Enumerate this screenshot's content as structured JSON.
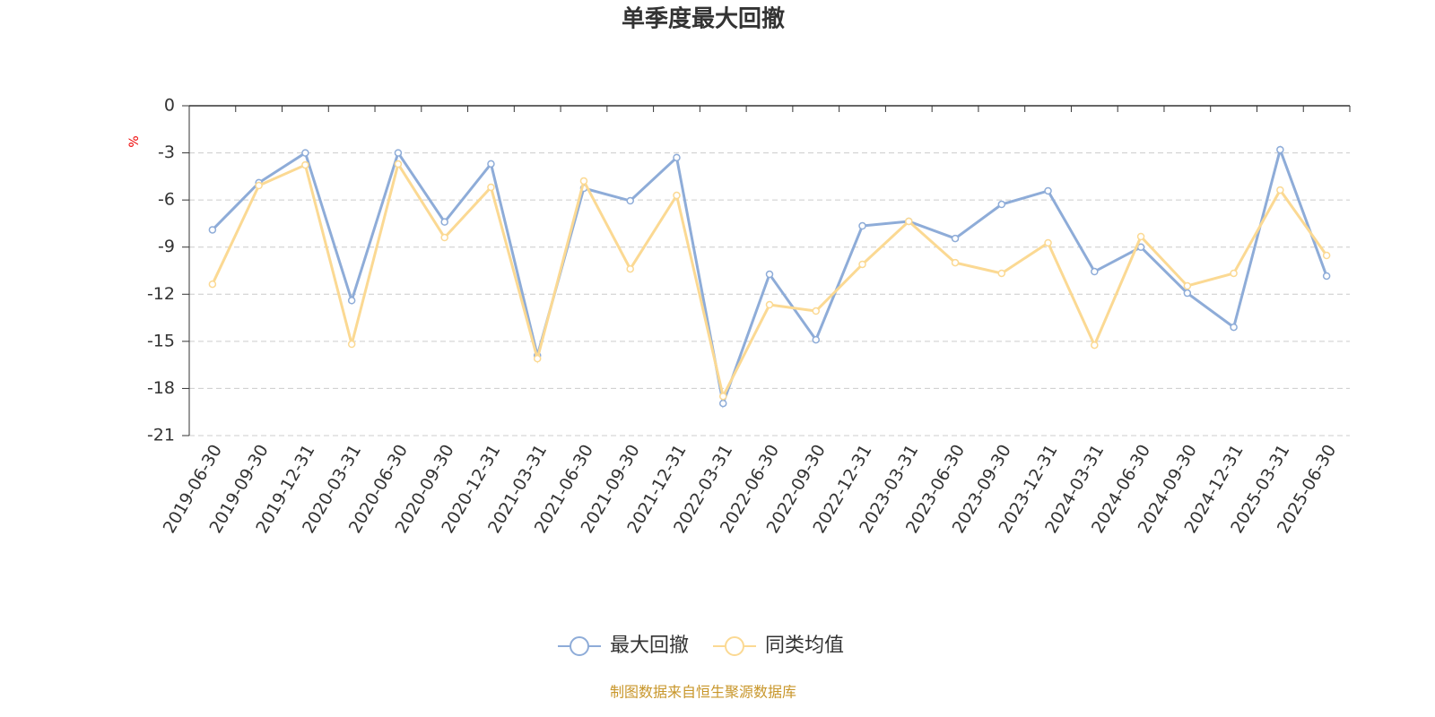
{
  "chart_data": {
    "type": "line",
    "title": "单季度最大回撤",
    "y_label": "%",
    "source": "制图数据来自恒生聚源数据库",
    "categories": [
      "2019-06-30",
      "2019-09-30",
      "2019-12-31",
      "2020-03-31",
      "2020-06-30",
      "2020-09-30",
      "2020-12-31",
      "2021-03-31",
      "2021-06-30",
      "2021-09-30",
      "2021-12-31",
      "2022-03-31",
      "2022-06-30",
      "2022-09-30",
      "2022-12-31",
      "2023-03-31",
      "2023-06-30",
      "2023-09-30",
      "2023-12-31",
      "2024-03-31",
      "2024-06-30",
      "2024-09-30",
      "2024-12-31",
      "2025-03-31",
      "2025-06-30"
    ],
    "series": [
      {
        "name": "最大回撤",
        "color": "#8eacd8",
        "values": [
          -7.9,
          -4.9,
          -3.0,
          -12.4,
          -3.0,
          -7.4,
          -3.7,
          -15.9,
          -5.25,
          -6.05,
          -3.3,
          -18.95,
          -10.73,
          -14.9,
          -7.65,
          -7.36,
          -8.45,
          -6.28,
          -5.42,
          -10.56,
          -9.0,
          -11.93,
          -14.1,
          -2.8,
          -10.84
        ]
      },
      {
        "name": "同类均值",
        "color": "#fbd993",
        "values": [
          -11.36,
          -5.08,
          -3.77,
          -15.18,
          -3.71,
          -8.39,
          -5.19,
          -16.1,
          -4.79,
          -10.39,
          -5.71,
          -18.5,
          -12.67,
          -13.07,
          -10.1,
          -7.36,
          -9.99,
          -10.67,
          -8.73,
          -15.24,
          -8.33,
          -11.47,
          -10.67,
          -5.37,
          -9.53
        ]
      }
    ],
    "ylim": [
      -21,
      0
    ],
    "yticks": [
      0,
      -3,
      -6,
      -9,
      -12,
      -15,
      -18,
      -21
    ],
    "grid": true
  }
}
